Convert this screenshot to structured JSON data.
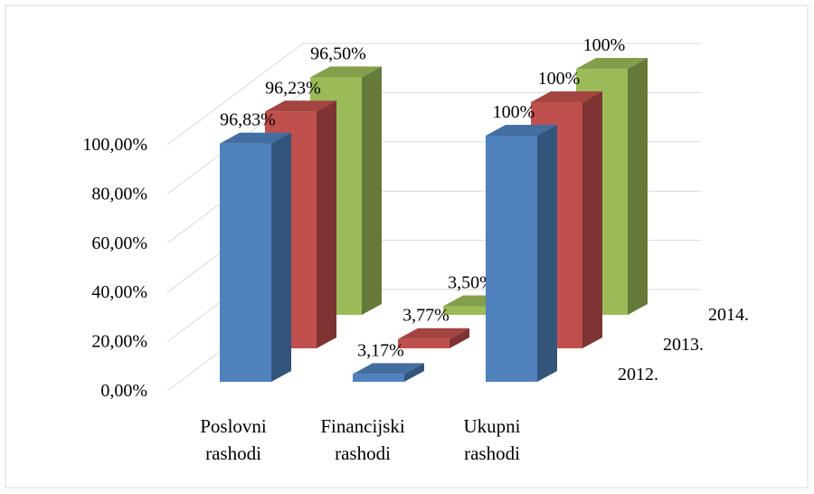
{
  "chart_data": {
    "type": "bar3d",
    "categories": [
      "Poslovni rashodi",
      "Financijski rashodi",
      "Ukupni rashodi"
    ],
    "series": [
      {
        "name": "2012.",
        "color": "#4f81bd",
        "values": [
          96.83,
          3.17,
          100
        ],
        "value_labels": [
          "96,83%",
          "3,17%",
          "100%"
        ]
      },
      {
        "name": "2013.",
        "color": "#c0504d",
        "values": [
          96.23,
          3.77,
          100
        ],
        "value_labels": [
          "96,23%",
          "3,77%",
          "100%"
        ]
      },
      {
        "name": "2014.",
        "color": "#9bbb59",
        "values": [
          96.5,
          3.5,
          100
        ],
        "value_labels": [
          "96,50%",
          "3,50%",
          "100%"
        ]
      }
    ],
    "ylim": [
      0,
      100
    ],
    "yticks": [
      {
        "value": 0,
        "label": "0,00%"
      },
      {
        "value": 20,
        "label": "20,00%"
      },
      {
        "value": 40,
        "label": "40,00%"
      },
      {
        "value": 60,
        "label": "60,00%"
      },
      {
        "value": 80,
        "label": "80,00%"
      },
      {
        "value": 100,
        "label": "100,00%"
      }
    ],
    "grid": true
  }
}
